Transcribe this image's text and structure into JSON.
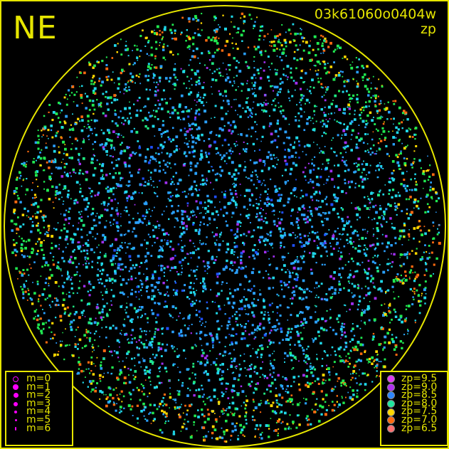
{
  "corner_label": "NE",
  "title": "03k61060o0404w",
  "subtitle": "zp",
  "colors": {
    "frame": "#e6e600",
    "background": "#000000"
  },
  "chart_data": {
    "type": "scatter",
    "title": "03k61060o0404w",
    "subtitle": "zp",
    "color_legend": [
      {
        "label": "zp=9.5",
        "value": 9.5,
        "color": "#e23cf5"
      },
      {
        "label": "zp=9.0",
        "value": 9.0,
        "color": "#b030f0"
      },
      {
        "label": "zp=8.5",
        "value": 8.5,
        "color": "#2e86ff"
      },
      {
        "label": "zp=8.0",
        "value": 8.0,
        "color": "#20e8a0"
      },
      {
        "label": "zp=7.5",
        "value": 7.5,
        "color": "#ffd800"
      },
      {
        "label": "zp=7.0",
        "value": 7.0,
        "color": "#ff6a10"
      },
      {
        "label": "zp=6.5",
        "value": 6.5,
        "color": "#ff6f6f"
      }
    ],
    "size_legend": [
      {
        "label": "m=0",
        "value": 0,
        "hollow": true
      },
      {
        "label": "m=1",
        "value": 1
      },
      {
        "label": "m=2",
        "value": 2
      },
      {
        "label": "m=3",
        "value": 3
      },
      {
        "label": "m=4",
        "value": 4
      },
      {
        "label": "m=5",
        "value": 5
      },
      {
        "label": "m=6",
        "value": 6
      }
    ]
  }
}
